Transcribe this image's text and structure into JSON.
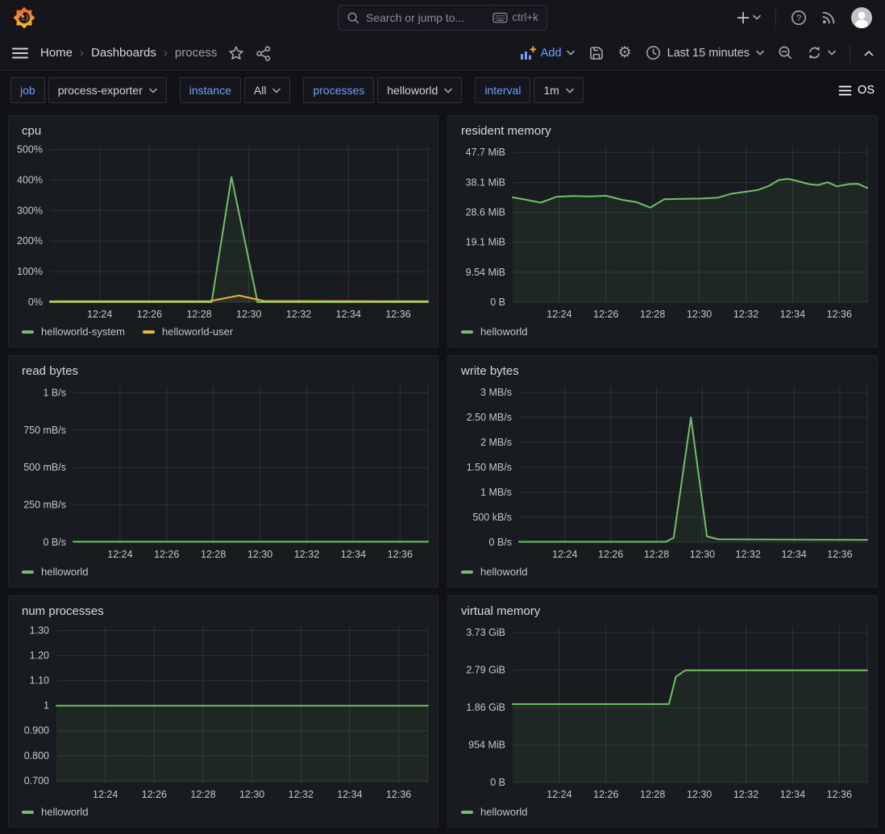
{
  "topbar": {
    "search_placeholder": "Search or jump to...",
    "search_shortcut": "ctrl+k"
  },
  "breadcrumb": {
    "items": [
      "Home",
      "Dashboards",
      "process"
    ]
  },
  "toolbar": {
    "add_label": "Add",
    "time_range": "Last 15 minutes"
  },
  "variables": [
    {
      "label": "job",
      "value": "process-exporter"
    },
    {
      "label": "instance",
      "value": "All"
    },
    {
      "label": "processes",
      "value": "helloworld"
    },
    {
      "label": "interval",
      "value": "1m"
    }
  ],
  "os_label": "OS",
  "icons": {
    "gear-icon": "⚙",
    "menu-icon": "≡",
    "chevron": "˅"
  },
  "colors": {
    "accent_blue": "#6e9fff",
    "series_green": "#73bf69",
    "series_yellow": "#eab839",
    "panel_bg": "#181b1f",
    "page_bg": "#111217"
  },
  "x_axis": {
    "xlim": [
      0,
      15.2
    ],
    "tick_values": [
      2,
      4,
      6,
      8,
      10,
      12,
      14
    ],
    "tick_labels": [
      "12:24",
      "12:26",
      "12:28",
      "12:30",
      "12:32",
      "12:34",
      "12:36"
    ]
  },
  "panels": [
    {
      "slug": "cpu",
      "title": "cpu",
      "chart": {
        "type": "line",
        "ylim": [
          0,
          512
        ],
        "y_tick_values": [
          0,
          100,
          200,
          300,
          400,
          500
        ],
        "y_tick_labels": [
          "0%",
          "100%",
          "200%",
          "300%",
          "400%",
          "500%"
        ],
        "series": [
          {
            "name": "helloworld-system",
            "color": "#73bf69",
            "fill": true,
            "points": [
              [
                0,
                0
              ],
              [
                6.5,
                0
              ],
              [
                7.3,
                410
              ],
              [
                8.35,
                0
              ],
              [
                15.2,
                0
              ]
            ]
          },
          {
            "name": "helloworld-user",
            "color": "#eab839",
            "fill": true,
            "points": [
              [
                0,
                3
              ],
              [
                6.4,
                3
              ],
              [
                7.6,
                22
              ],
              [
                8.6,
                4
              ],
              [
                15.2,
                3
              ]
            ]
          }
        ]
      }
    },
    {
      "slug": "resident-memory",
      "title": "resident memory",
      "chart": {
        "type": "line",
        "ylim": [
          0,
          49.8
        ],
        "y_tick_values": [
          0,
          9.54,
          19.1,
          28.6,
          38.1,
          47.7
        ],
        "y_tick_labels": [
          "0 B",
          "9.54 MiB",
          "19.1 MiB",
          "28.6 MiB",
          "38.1 MiB",
          "47.7 MiB"
        ],
        "series": [
          {
            "name": "helloworld",
            "color": "#73bf69",
            "fill": true,
            "points": [
              [
                0,
                33.4
              ],
              [
                0.6,
                32.6
              ],
              [
                1.2,
                31.7
              ],
              [
                1.9,
                33.6
              ],
              [
                2.6,
                33.8
              ],
              [
                3.3,
                33.7
              ],
              [
                4.0,
                33.9
              ],
              [
                4.7,
                32.6
              ],
              [
                5.3,
                31.9
              ],
              [
                5.9,
                30.1
              ],
              [
                6.5,
                32.8
              ],
              [
                7.3,
                32.9
              ],
              [
                8.1,
                33.0
              ],
              [
                8.8,
                33.3
              ],
              [
                9.4,
                34.6
              ],
              [
                10.0,
                35.2
              ],
              [
                10.5,
                35.7
              ],
              [
                11.0,
                37.1
              ],
              [
                11.4,
                38.9
              ],
              [
                11.8,
                39.3
              ],
              [
                12.2,
                38.6
              ],
              [
                12.7,
                37.6
              ],
              [
                13.1,
                37.3
              ],
              [
                13.5,
                38.2
              ],
              [
                13.9,
                36.9
              ],
              [
                14.4,
                37.6
              ],
              [
                14.8,
                37.7
              ],
              [
                15.2,
                36.4
              ]
            ]
          }
        ]
      }
    },
    {
      "slug": "read-bytes",
      "title": "read bytes",
      "chart": {
        "type": "line",
        "ylim": [
          0,
          1.045
        ],
        "y_tick_values": [
          0,
          0.25,
          0.5,
          0.75,
          1
        ],
        "y_tick_labels": [
          "0 B/s",
          "250 mB/s",
          "500 mB/s",
          "750 mB/s",
          "1 B/s"
        ],
        "series": [
          {
            "name": "helloworld",
            "color": "#73bf69",
            "fill": true,
            "points": [
              [
                0,
                0.004
              ],
              [
                15.2,
                0.004
              ]
            ]
          }
        ]
      }
    },
    {
      "slug": "write-bytes",
      "title": "write bytes",
      "chart": {
        "type": "line",
        "ylim": [
          0,
          3.13
        ],
        "y_tick_values": [
          0,
          0.5,
          1,
          1.5,
          2,
          2.5,
          3
        ],
        "y_tick_labels": [
          "0 B/s",
          "500 kB/s",
          "1 MB/s",
          "1.50 MB/s",
          "2 MB/s",
          "2.50 MB/s",
          "3 MB/s"
        ],
        "series": [
          {
            "name": "helloworld",
            "color": "#73bf69",
            "fill": true,
            "points": [
              [
                0,
                0.01
              ],
              [
                6.4,
                0.01
              ],
              [
                6.75,
                0.09
              ],
              [
                7.5,
                2.5
              ],
              [
                8.2,
                0.12
              ],
              [
                8.7,
                0.06
              ],
              [
                15.2,
                0.05
              ]
            ]
          }
        ]
      }
    },
    {
      "slug": "num-processes",
      "title": "num processes",
      "chart": {
        "type": "line",
        "ylim": [
          0.693,
          1.318
        ],
        "y_tick_values": [
          0.7,
          0.8,
          0.9,
          1,
          1.1,
          1.2,
          1.3
        ],
        "y_tick_labels": [
          "0.700",
          "0.800",
          "0.900",
          "1",
          "1.10",
          "1.20",
          "1.30"
        ],
        "series": [
          {
            "name": "helloworld",
            "color": "#73bf69",
            "fill": true,
            "points": [
              [
                0,
                1
              ],
              [
                15.2,
                1
              ]
            ]
          }
        ]
      }
    },
    {
      "slug": "virtual-memory",
      "title": "virtual memory",
      "chart": {
        "type": "line",
        "ylim": [
          0,
          3.89
        ],
        "y_tick_values": [
          0,
          0.9313,
          1.8626,
          2.794,
          3.7253
        ],
        "y_tick_labels": [
          "0 B",
          "954 MiB",
          "1.86 GiB",
          "2.79 GiB",
          "3.73 GiB"
        ],
        "series": [
          {
            "name": "helloworld",
            "color": "#73bf69",
            "fill": true,
            "points": [
              [
                0,
                1.95
              ],
              [
                6.7,
                1.95
              ],
              [
                7.0,
                2.63
              ],
              [
                7.4,
                2.79
              ],
              [
                15.2,
                2.79
              ]
            ]
          }
        ]
      }
    }
  ]
}
